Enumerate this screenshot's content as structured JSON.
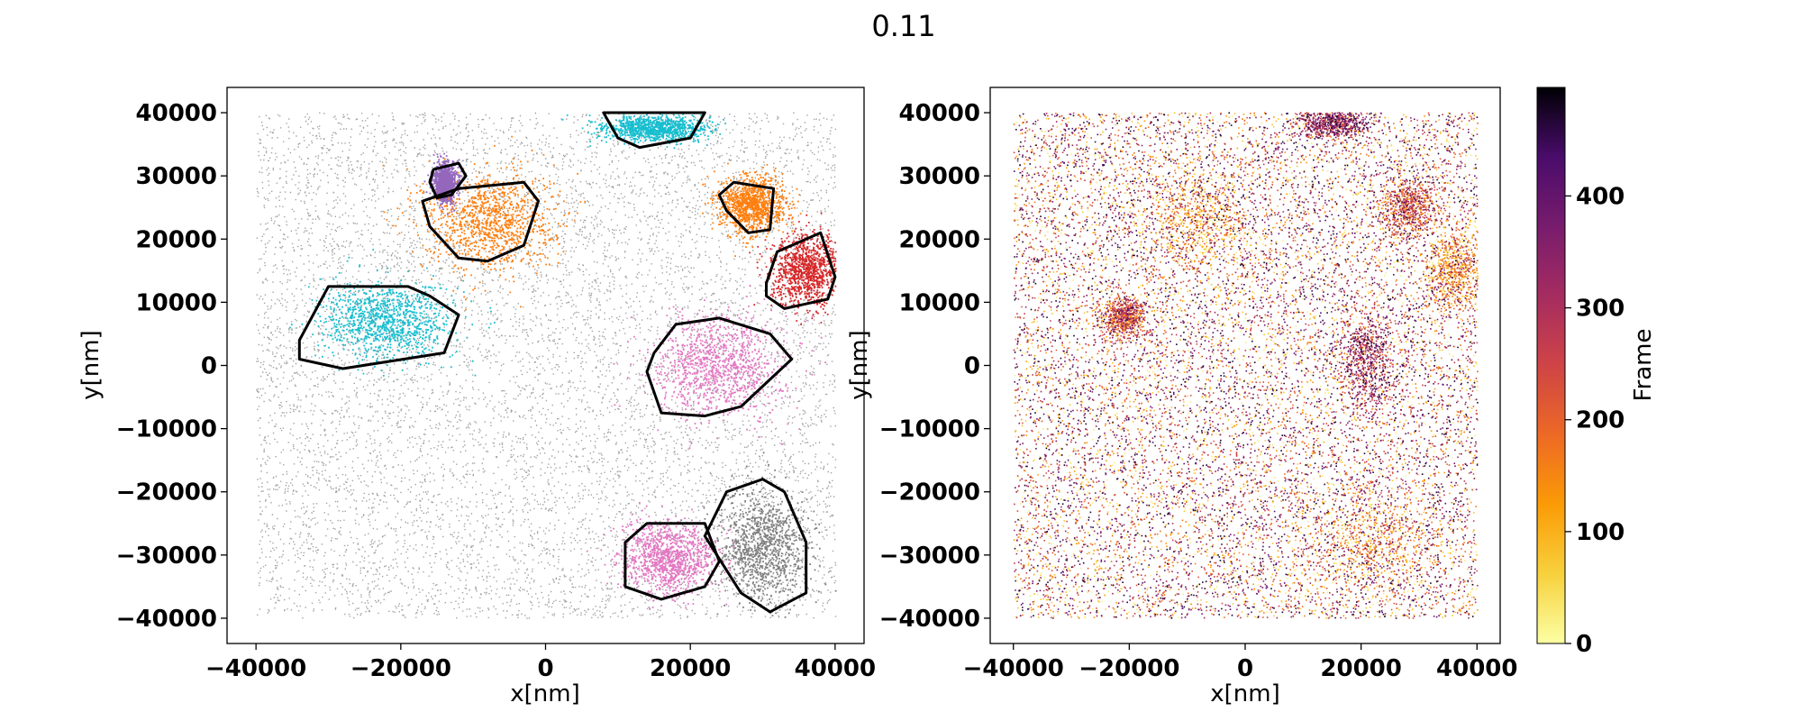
{
  "figure": {
    "title": "0.11"
  },
  "chart_data": [
    {
      "type": "scatter",
      "title": "",
      "xlabel": "x[nm]",
      "ylabel": "y[nm]",
      "xlim": [
        -44000,
        44000
      ],
      "ylim": [
        -44000,
        44000
      ],
      "xticks": [
        -40000,
        -20000,
        0,
        20000,
        40000
      ],
      "yticks": [
        -40000,
        -30000,
        -20000,
        -10000,
        0,
        10000,
        20000,
        30000,
        40000
      ],
      "xtick_labels": [
        "−40000",
        "−20000",
        "0",
        "20000",
        "40000"
      ],
      "ytick_labels": [
        "−40000",
        "−30000",
        "−20000",
        "−10000",
        "0",
        "10000",
        "20000",
        "30000",
        "40000"
      ],
      "grid": false,
      "background_points": {
        "color": "#555555",
        "x_range": [
          -40000,
          40000
        ],
        "y_range": [
          -40000,
          40000
        ]
      },
      "clusters": [
        {
          "color": "#ff7f0e",
          "center": [
            -8000,
            23000
          ],
          "spread": [
            4500,
            4000
          ],
          "hull": [
            [
              -17000,
              26000
            ],
            [
              -12000,
              28000
            ],
            [
              -3000,
              29000
            ],
            [
              -1000,
              26000
            ],
            [
              -3000,
              19000
            ],
            [
              -8000,
              16500
            ],
            [
              -12000,
              17000
            ],
            [
              -16000,
              22000
            ]
          ]
        },
        {
          "color": "#17becf",
          "center": [
            -22000,
            7000
          ],
          "spread": [
            4500,
            3000
          ],
          "hull": [
            [
              -34000,
              4000
            ],
            [
              -30000,
              12500
            ],
            [
              -19000,
              12500
            ],
            [
              -16000,
              11000
            ],
            [
              -12000,
              8000
            ],
            [
              -14000,
              2000
            ],
            [
              -28000,
              -500
            ],
            [
              -34000,
              1000
            ]
          ]
        },
        {
          "color": "#e377c2",
          "center": [
            24000,
            0
          ],
          "spread": [
            4500,
            4000
          ],
          "hull": [
            [
              15000,
              2000
            ],
            [
              18000,
              6500
            ],
            [
              24000,
              7500
            ],
            [
              31000,
              5000
            ],
            [
              34000,
              1000
            ],
            [
              27000,
              -6500
            ],
            [
              22000,
              -8000
            ],
            [
              16000,
              -7500
            ],
            [
              14000,
              -1000
            ]
          ]
        },
        {
          "color": "#d62728",
          "center": [
            36000,
            15000
          ],
          "spread": [
            2500,
            2800
          ],
          "hull": [
            [
              30500,
              13000
            ],
            [
              32000,
              18000
            ],
            [
              38000,
              21000
            ],
            [
              40000,
              14000
            ],
            [
              39000,
              10500
            ],
            [
              33000,
              9000
            ],
            [
              30500,
              11000
            ]
          ]
        },
        {
          "color": "#ff7f0e",
          "center": [
            28500,
            25500
          ],
          "spread": [
            2200,
            2200
          ],
          "hull": [
            [
              24000,
              27000
            ],
            [
              26000,
              29000
            ],
            [
              31500,
              28000
            ],
            [
              31000,
              21500
            ],
            [
              28000,
              21000
            ],
            [
              25000,
              24500
            ]
          ]
        },
        {
          "color": "#9467bd",
          "center": [
            -14000,
            29000
          ],
          "spread": [
            800,
            1500
          ],
          "hull": [
            [
              -15500,
              31000
            ],
            [
              -12000,
              32000
            ],
            [
              -11000,
              30000
            ],
            [
              -13000,
              27000
            ],
            [
              -15000,
              26500
            ],
            [
              -16000,
              29000
            ]
          ]
        },
        {
          "color": "#17becf",
          "center": [
            15000,
            37500
          ],
          "spread": [
            3500,
            1000
          ],
          "hull": [
            [
              8000,
              40000
            ],
            [
              22000,
              40000
            ],
            [
              20000,
              36000
            ],
            [
              13000,
              34500
            ],
            [
              10000,
              36000
            ]
          ]
        },
        {
          "color": "#7f7f7f",
          "center": [
            30000,
            -29000
          ],
          "spread": [
            3200,
            4500
          ],
          "hull": [
            [
              25000,
              -20000
            ],
            [
              30000,
              -18000
            ],
            [
              33000,
              -20000
            ],
            [
              36000,
              -28000
            ],
            [
              36000,
              -36000
            ],
            [
              31000,
              -39000
            ],
            [
              27000,
              -36000
            ],
            [
              22000,
              -27000
            ]
          ]
        },
        {
          "color": "#e377c2",
          "center": [
            17000,
            -30500
          ],
          "spread": [
            3200,
            2700
          ],
          "hull": [
            [
              11000,
              -28000
            ],
            [
              14000,
              -25000
            ],
            [
              22000,
              -25000
            ],
            [
              24000,
              -31000
            ],
            [
              22000,
              -35000
            ],
            [
              16000,
              -37000
            ],
            [
              11000,
              -35000
            ]
          ]
        }
      ]
    },
    {
      "type": "scatter",
      "title": "",
      "xlabel": "x[nm]",
      "ylabel": "y[nm]",
      "xlim": [
        -44000,
        44000
      ],
      "ylim": [
        -44000,
        44000
      ],
      "xticks": [
        -40000,
        -20000,
        0,
        20000,
        40000
      ],
      "yticks": [
        -40000,
        -30000,
        -20000,
        -10000,
        0,
        10000,
        20000,
        30000,
        40000
      ],
      "xtick_labels": [
        "−40000",
        "−20000",
        "0",
        "20000",
        "40000"
      ],
      "ytick_labels": [
        "−40000",
        "−30000",
        "−20000",
        "−10000",
        "0",
        "10000",
        "20000",
        "30000",
        "40000"
      ],
      "grid": false,
      "colormap": "inferno_r",
      "color_range": [
        0,
        500
      ],
      "hotspots": [
        {
          "center": [
            -8000,
            23000
          ],
          "spread": [
            4500,
            4500
          ]
        },
        {
          "center": [
            -21000,
            7500
          ],
          "spread": [
            2000,
            1500
          ]
        },
        {
          "center": [
            21000,
            1000
          ],
          "spread": [
            2500,
            4000
          ]
        },
        {
          "center": [
            36000,
            15000
          ],
          "spread": [
            2500,
            3500
          ]
        },
        {
          "center": [
            28000,
            25000
          ],
          "spread": [
            2500,
            2500
          ]
        },
        {
          "center": [
            15000,
            38500
          ],
          "spread": [
            3000,
            1200
          ]
        },
        {
          "center": [
            22000,
            -28000
          ],
          "spread": [
            5500,
            4500
          ]
        }
      ],
      "colorbar": {
        "label": "Frame",
        "ticks": [
          0,
          100,
          200,
          300,
          400
        ],
        "tick_labels": [
          "0",
          "100",
          "200",
          "300",
          "400"
        ],
        "range": [
          0,
          497
        ]
      }
    }
  ]
}
